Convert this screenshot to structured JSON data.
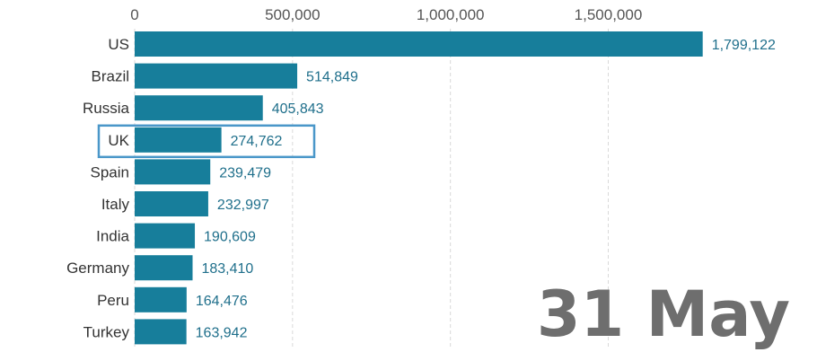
{
  "chart_data": {
    "type": "bar",
    "orientation": "horizontal",
    "categories": [
      "US",
      "Brazil",
      "Russia",
      "UK",
      "Spain",
      "Italy",
      "India",
      "Germany",
      "Peru",
      "Turkey"
    ],
    "values": [
      1799122,
      514849,
      405843,
      274762,
      239479,
      232997,
      190609,
      183410,
      164476,
      163942
    ],
    "value_labels": [
      "1,799,122",
      "514,849",
      "405,843",
      "274,762",
      "239,479",
      "232,997",
      "190,609",
      "183,410",
      "164,476",
      "163,942"
    ],
    "highlighted_category": "UK",
    "xlim": [
      0,
      1850000
    ],
    "x_ticks": [
      0,
      500000,
      1000000,
      1500000
    ],
    "x_tick_labels": [
      "0",
      "500,000",
      "1,000,000",
      "1,500,000"
    ],
    "x_axis_position": "top",
    "grid": "vertical dashed",
    "date_label": "31 May"
  },
  "colors": {
    "bar": "#177e9b",
    "highlight_outline": "#4a97c9",
    "value_text": "#1f6f8b",
    "gridline": "#d9d9d9",
    "date_text": "#6e6e6e"
  }
}
